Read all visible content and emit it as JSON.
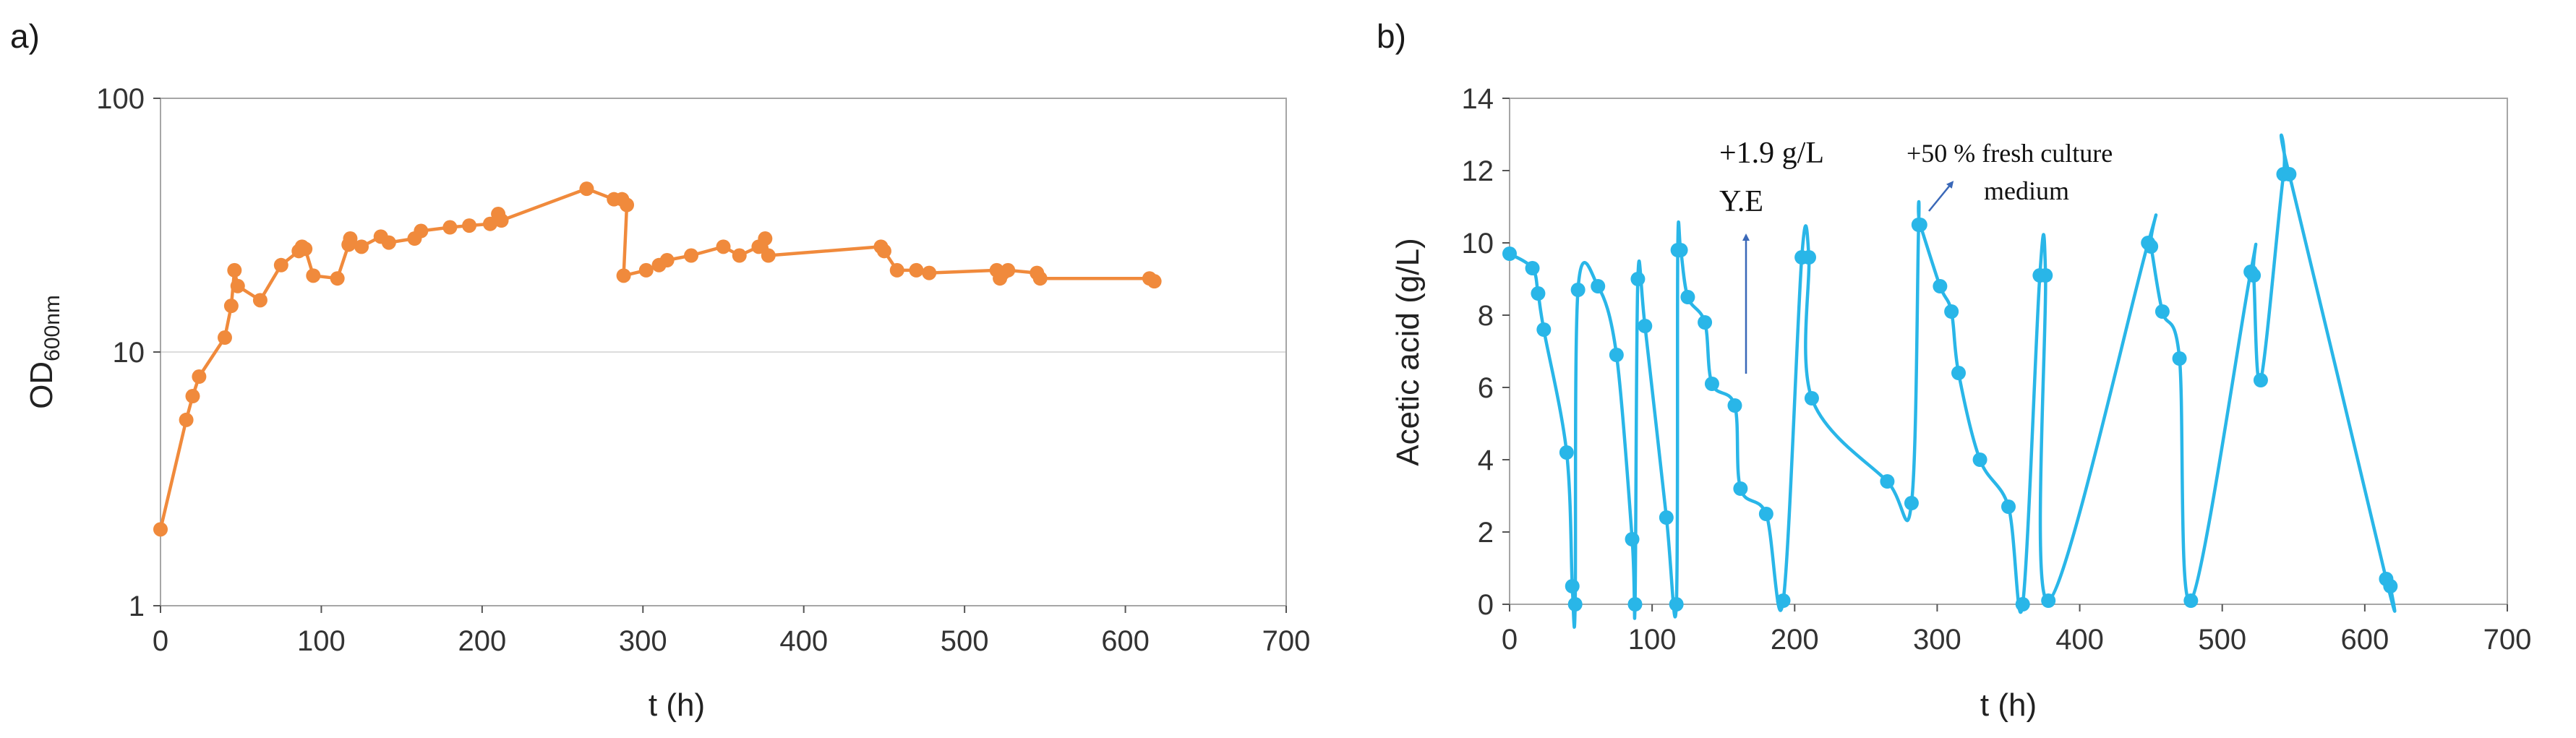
{
  "chart_data": [
    {
      "panel": "a)",
      "type": "line",
      "xlabel": "t (h)",
      "ylabel_main": "OD",
      "ylabel_sub": "600nm",
      "yscale": "log",
      "xlim": [
        0,
        700
      ],
      "ylim": [
        1,
        100
      ],
      "xticks": [
        "0",
        "100",
        "200",
        "300",
        "400",
        "500",
        "600",
        "700"
      ],
      "yticks": [
        "1",
        "10",
        "100"
      ],
      "grid_lines": [
        10
      ],
      "color": "#f08a3c",
      "x": [
        0,
        16,
        20,
        24,
        40,
        44,
        46,
        48,
        62,
        75,
        86,
        88,
        90,
        95,
        110,
        117,
        118,
        125,
        137,
        142,
        158,
        162,
        180,
        192,
        205,
        210,
        212,
        265,
        282,
        287,
        290,
        288,
        302,
        310,
        315,
        330,
        350,
        360,
        372,
        376,
        378,
        448,
        450,
        458,
        470,
        478,
        520,
        522,
        524,
        527,
        545,
        547,
        615,
        618
      ],
      "y": [
        2.0,
        5.4,
        6.7,
        8.0,
        11.4,
        15.2,
        21.0,
        18.2,
        16.0,
        22.0,
        25.0,
        26.0,
        25.5,
        20.0,
        19.5,
        26.5,
        28.0,
        26.0,
        28.5,
        27.0,
        28.0,
        30.0,
        31.0,
        31.5,
        32.0,
        35.0,
        33.0,
        44.0,
        40.0,
        40.0,
        38.0,
        20.0,
        21.0,
        22.0,
        23.0,
        24.0,
        26.0,
        24.0,
        26.0,
        28.0,
        24.0,
        26.0,
        25.0,
        21.0,
        21.0,
        20.5,
        21.0,
        19.5,
        20.5,
        21.0,
        20.5,
        19.5,
        19.5,
        19.0
      ]
    },
    {
      "panel": "b)",
      "type": "line",
      "xlabel": "t (h)",
      "ylabel": "Acetic acid (g/L)",
      "xlim": [
        0,
        700
      ],
      "ylim": [
        0,
        14
      ],
      "xticks": [
        "0",
        "100",
        "200",
        "300",
        "400",
        "500",
        "600",
        "700"
      ],
      "yticks": [
        "0",
        "2",
        "4",
        "6",
        "8",
        "10",
        "12",
        "14"
      ],
      "color": "#29b6e8",
      "x": [
        0,
        16,
        20,
        24,
        40,
        44,
        46,
        48,
        62,
        75,
        86,
        88,
        90,
        95,
        110,
        117,
        118,
        120,
        125,
        137,
        142,
        158,
        162,
        180,
        192,
        205,
        210,
        212,
        265,
        282,
        287,
        288,
        302,
        310,
        315,
        330,
        350,
        360,
        372,
        376,
        378,
        448,
        450,
        458,
        470,
        478,
        520,
        522,
        527,
        543,
        547,
        615,
        618
      ],
      "y": [
        9.7,
        9.3,
        8.6,
        7.6,
        4.2,
        0.5,
        0.0,
        8.7,
        8.8,
        6.9,
        1.8,
        0.0,
        9.0,
        7.7,
        2.4,
        0.0,
        9.8,
        9.8,
        8.5,
        7.8,
        6.1,
        5.5,
        3.2,
        2.5,
        0.1,
        9.6,
        9.6,
        5.7,
        3.4,
        2.8,
        10.5,
        10.5,
        8.8,
        8.1,
        6.4,
        4.0,
        2.7,
        0.0,
        9.1,
        9.1,
        0.1,
        10.0,
        9.9,
        8.1,
        6.8,
        0.1,
        9.2,
        9.1,
        6.2,
        11.9,
        11.9,
        0.7,
        0.5
      ]
    }
  ],
  "annotations": {
    "ye_line1": "+1.9 g/L",
    "ye_line2": "Y.E",
    "fresh_line1": "+50 % fresh culture",
    "fresh_line2": "medium"
  }
}
